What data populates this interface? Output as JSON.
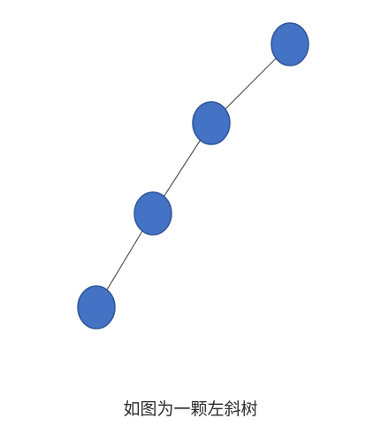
{
  "diagram": {
    "type": "left-skewed-binary-tree",
    "node_fill": "#4472C4",
    "node_stroke": "#2F5597",
    "edge_color": "#595959",
    "nodes": [
      {
        "id": "n1"
      },
      {
        "id": "n2"
      },
      {
        "id": "n3"
      },
      {
        "id": "n4"
      }
    ],
    "edges": [
      {
        "from": "n1",
        "to": "n2"
      },
      {
        "from": "n2",
        "to": "n3"
      },
      {
        "from": "n3",
        "to": "n4"
      }
    ]
  },
  "caption": "如图为一颗左斜树"
}
